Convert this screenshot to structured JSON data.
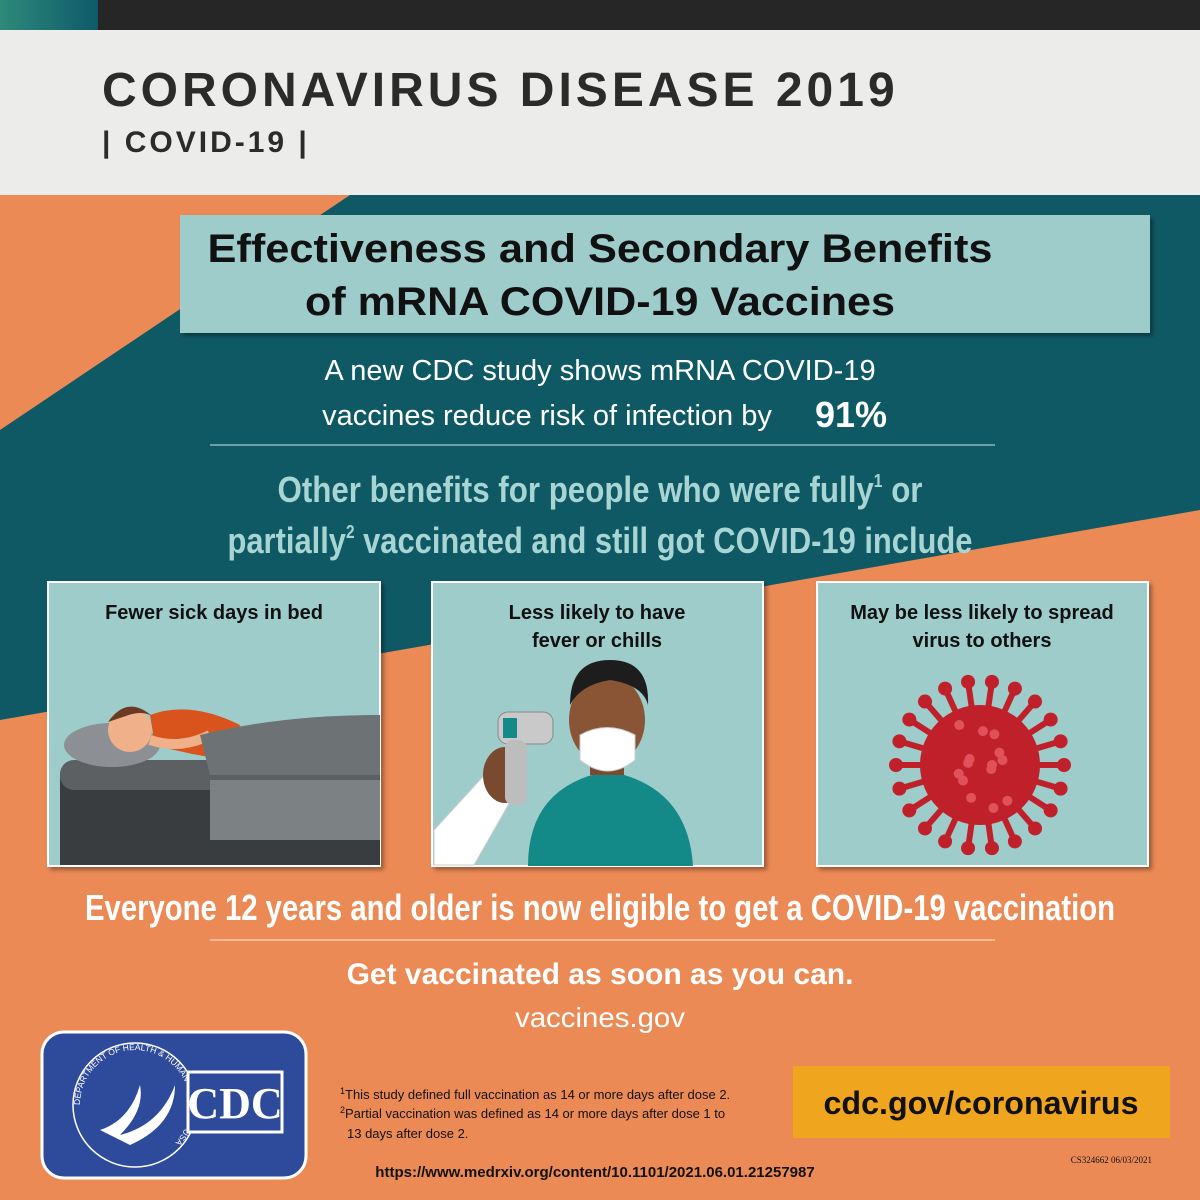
{
  "header": {
    "title": "CORONAVIRUS DISEASE 2019",
    "subtitle": "| COVID-19 |"
  },
  "banner": {
    "lines": [
      "Effectiveness and Secondary Benefits",
      "of mRNA COVID-19 Vaccines"
    ]
  },
  "intro": {
    "line1": "A new CDC study shows mRNA COVID-19",
    "line2": "vaccines reduce risk of infection by",
    "figure": "91%"
  },
  "benefits_heading": {
    "line1": {
      "text": "Other benefits for people who were fully",
      "note": "1",
      "tail": " or"
    },
    "line2": {
      "text": "partially",
      "note": "2",
      "tail": " vaccinated and still got COVID-19 include"
    }
  },
  "panels": [
    {
      "caption": [
        "Fewer sick days in bed"
      ]
    },
    {
      "caption": [
        "Less likely to have",
        "fever or chills"
      ]
    },
    {
      "caption": [
        "May be less likely to spread",
        "virus to others"
      ]
    }
  ],
  "eligibility": "Everyone 12 years and older is now eligible to get a COVID-19 vaccination",
  "call_to_action": {
    "text": "Get vaccinated as soon as you can.",
    "link": "vaccines.gov"
  },
  "logo": {
    "agency": "CDC",
    "seal": "DEPARTMENT OF HEALTH & HUMAN SERVICES USA"
  },
  "footnotes": [
    {
      "mark": "1",
      "lines": [
        "This study defined full vaccination as 14 or more days after dose 2."
      ]
    },
    {
      "mark": "2",
      "lines": [
        "Partial vaccination was defined as 14 or more days after dose 1 to",
        "13 days after dose 2."
      ]
    }
  ],
  "website": "cdc.gov/coronavirus",
  "code": "CS324662 06/03/2021",
  "source_url": "https://www.medrxiv.org/content/10.1101/2021.06.01.21257987"
}
